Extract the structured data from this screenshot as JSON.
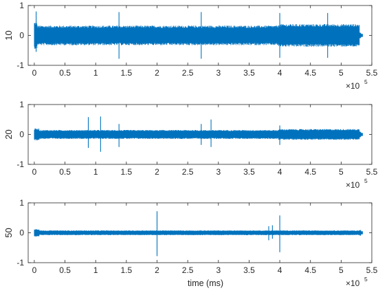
{
  "chart_data": [
    {
      "type": "line",
      "panel": 1,
      "ylabel": "10",
      "xlabel": "",
      "xlim": [
        -0.1,
        5.5
      ],
      "ylim": [
        -1,
        1
      ],
      "xticks": [
        "0",
        "0.5",
        "1",
        "1.5",
        "2",
        "2.5",
        "3",
        "3.5",
        "4",
        "4.5",
        "5",
        "5.5"
      ],
      "yticks": [
        "-1",
        "0",
        "1"
      ],
      "x_exponent_base": "×10",
      "x_exponent_power": "5",
      "color": "#0072BD",
      "signal": {
        "x_start": 0,
        "x_end": 5.32,
        "envelope_segments": [
          {
            "x0": 0.0,
            "x1": 0.05,
            "amp": 0.45
          },
          {
            "x0": 0.05,
            "x1": 3.98,
            "amp": 0.33
          },
          {
            "x0": 3.98,
            "x1": 5.3,
            "amp": 0.38
          }
        ],
        "spikes": [
          {
            "x": 0.03,
            "top": 0.8,
            "bottom": -0.55
          },
          {
            "x": 1.38,
            "top": 0.78,
            "bottom": -0.78
          },
          {
            "x": 2.72,
            "top": 0.78,
            "bottom": -0.78
          },
          {
            "x": 4.0,
            "top": 0.75,
            "bottom": -0.75
          },
          {
            "x": 4.78,
            "top": 0.75,
            "bottom": -0.75
          }
        ]
      }
    },
    {
      "type": "line",
      "panel": 2,
      "ylabel": "20",
      "xlabel": "",
      "xlim": [
        -0.1,
        5.5
      ],
      "ylim": [
        -1,
        1
      ],
      "xticks": [
        "0",
        "0.5",
        "1",
        "1.5",
        "2",
        "2.5",
        "3",
        "3.5",
        "4",
        "4.5",
        "5",
        "5.5"
      ],
      "yticks": [
        "-1",
        "0",
        "1"
      ],
      "x_exponent_base": "×10",
      "x_exponent_power": "5",
      "color": "#0072BD",
      "signal": {
        "x_start": 0,
        "x_end": 5.32,
        "envelope_segments": [
          {
            "x0": 0.0,
            "x1": 0.08,
            "amp": 0.2
          },
          {
            "x0": 0.08,
            "x1": 3.98,
            "amp": 0.15
          },
          {
            "x0": 3.98,
            "x1": 5.3,
            "amp": 0.18
          }
        ],
        "spikes": [
          {
            "x": 0.88,
            "top": 0.58,
            "bottom": -0.45
          },
          {
            "x": 1.08,
            "top": 0.6,
            "bottom": -0.58
          },
          {
            "x": 1.38,
            "top": 0.35,
            "bottom": -0.42
          },
          {
            "x": 2.72,
            "top": 0.35,
            "bottom": -0.35
          },
          {
            "x": 2.88,
            "top": 0.5,
            "bottom": -0.42
          },
          {
            "x": 4.0,
            "top": 0.3,
            "bottom": -0.35
          }
        ]
      }
    },
    {
      "type": "line",
      "panel": 3,
      "ylabel": "50",
      "xlabel": "time (ms)",
      "xlim": [
        -0.1,
        5.5
      ],
      "ylim": [
        -1,
        1
      ],
      "xticks": [
        "0",
        "0.5",
        "1",
        "1.5",
        "2",
        "2.5",
        "3",
        "3.5",
        "4",
        "4.5",
        "5",
        "5.5"
      ],
      "yticks": [
        "-1",
        "0",
        "1"
      ],
      "x_exponent_base": "×10",
      "x_exponent_power": "5",
      "color": "#0072BD",
      "signal": {
        "x_start": 0,
        "x_end": 5.32,
        "envelope_segments": [
          {
            "x0": 0.0,
            "x1": 0.08,
            "amp": 0.13
          },
          {
            "x0": 0.08,
            "x1": 5.3,
            "amp": 0.08
          }
        ],
        "spikes": [
          {
            "x": 2.0,
            "top": 0.72,
            "bottom": -0.78
          },
          {
            "x": 3.82,
            "top": 0.22,
            "bottom": -0.25
          },
          {
            "x": 3.88,
            "top": 0.25,
            "bottom": -0.2
          },
          {
            "x": 4.0,
            "top": 0.58,
            "bottom": -0.65
          }
        ]
      }
    }
  ]
}
